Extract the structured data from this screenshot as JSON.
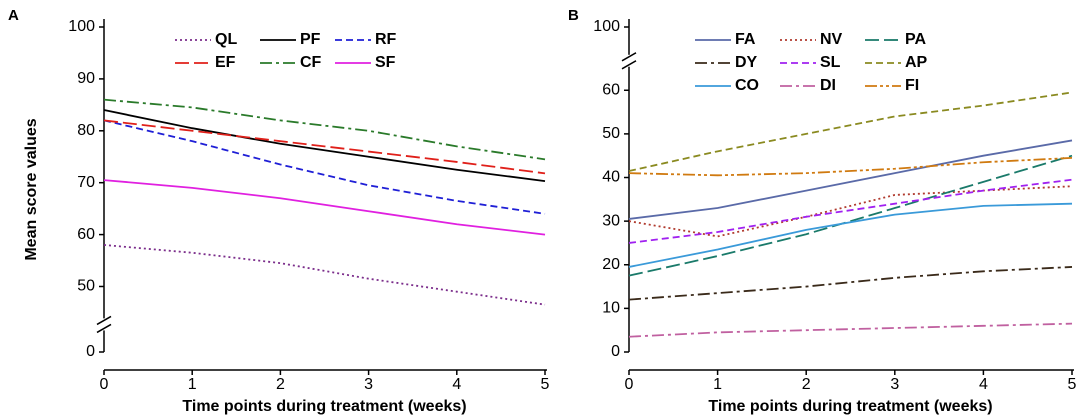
{
  "chart_data": [
    {
      "type": "line",
      "panel": "A",
      "ylabel": "Mean score values",
      "xlabel": "Time points during treatment (weeks)",
      "x": [
        0,
        1,
        2,
        3,
        4,
        5
      ],
      "xlim": [
        0,
        5
      ],
      "xticks": [
        0,
        1,
        2,
        3,
        4,
        5
      ],
      "ylim": [
        0,
        100
      ],
      "ybreak": [
        3,
        45
      ],
      "yticks": [
        0,
        50,
        60,
        70,
        80,
        90,
        100
      ],
      "series": [
        {
          "name": "QL",
          "color": "#7b2d8b",
          "style": "dotted",
          "values": [
            58,
            56.5,
            54.5,
            51.5,
            49,
            46.5
          ]
        },
        {
          "name": "PF",
          "color": "#000000",
          "style": "solid",
          "values": [
            84,
            80.5,
            77.5,
            75,
            72.5,
            70.3
          ]
        },
        {
          "name": "RF",
          "color": "#1f1fd6",
          "style": "dashed",
          "values": [
            82,
            78,
            73.5,
            69.5,
            66.5,
            64
          ]
        },
        {
          "name": "EF",
          "color": "#e0201a",
          "style": "longdash",
          "values": [
            82,
            80,
            78,
            76,
            74,
            71.8
          ]
        },
        {
          "name": "CF",
          "color": "#2a7a2a",
          "style": "dashdot",
          "values": [
            86,
            84.5,
            82,
            80,
            77,
            74.5
          ]
        },
        {
          "name": "SF",
          "color": "#e020e0",
          "style": "solid",
          "values": [
            70.5,
            69,
            67,
            64.5,
            62,
            60
          ]
        }
      ]
    },
    {
      "type": "line",
      "panel": "B",
      "xlabel": "Time points during treatment (weeks)",
      "x": [
        0,
        1,
        2,
        3,
        4,
        5
      ],
      "xlim": [
        0,
        5
      ],
      "xticks": [
        0,
        1,
        2,
        3,
        4,
        5
      ],
      "ylim": [
        0,
        100
      ],
      "ybreak": [
        64,
        95
      ],
      "yticks": [
        0,
        10,
        20,
        30,
        40,
        50,
        60,
        100
      ],
      "series": [
        {
          "name": "FA",
          "color": "#5a6aa8",
          "style": "solid",
          "values": [
            30.5,
            33,
            37,
            41,
            45,
            48.5
          ]
        },
        {
          "name": "NV",
          "color": "#b03a2e",
          "style": "dotted",
          "values": [
            30,
            26.5,
            31,
            36,
            37,
            38
          ]
        },
        {
          "name": "PA",
          "color": "#1a7a6a",
          "style": "longdash",
          "values": [
            17.5,
            22,
            27,
            33,
            39,
            45
          ]
        },
        {
          "name": "DY",
          "color": "#3a2a1a",
          "style": "dashdot",
          "values": [
            12,
            13.5,
            15,
            17,
            18.5,
            19.5
          ]
        },
        {
          "name": "SL",
          "color": "#a020f0",
          "style": "dashed",
          "values": [
            25,
            27.5,
            31,
            34,
            37,
            39.5
          ]
        },
        {
          "name": "AP",
          "color": "#8a8a20",
          "style": "dashed",
          "values": [
            41.5,
            46,
            50,
            54,
            56.5,
            59.5
          ]
        },
        {
          "name": "CO",
          "color": "#3a9ad9",
          "style": "solid",
          "values": [
            19.5,
            23.5,
            28,
            31.5,
            33.5,
            34
          ]
        },
        {
          "name": "DI",
          "color": "#c060a0",
          "style": "dashdot",
          "values": [
            3.5,
            4.5,
            5,
            5.5,
            6,
            6.5
          ]
        },
        {
          "name": "FI",
          "color": "#d07a10",
          "style": "dashdotdot",
          "values": [
            41,
            40.5,
            41,
            42,
            43.5,
            44.5
          ]
        }
      ]
    }
  ]
}
